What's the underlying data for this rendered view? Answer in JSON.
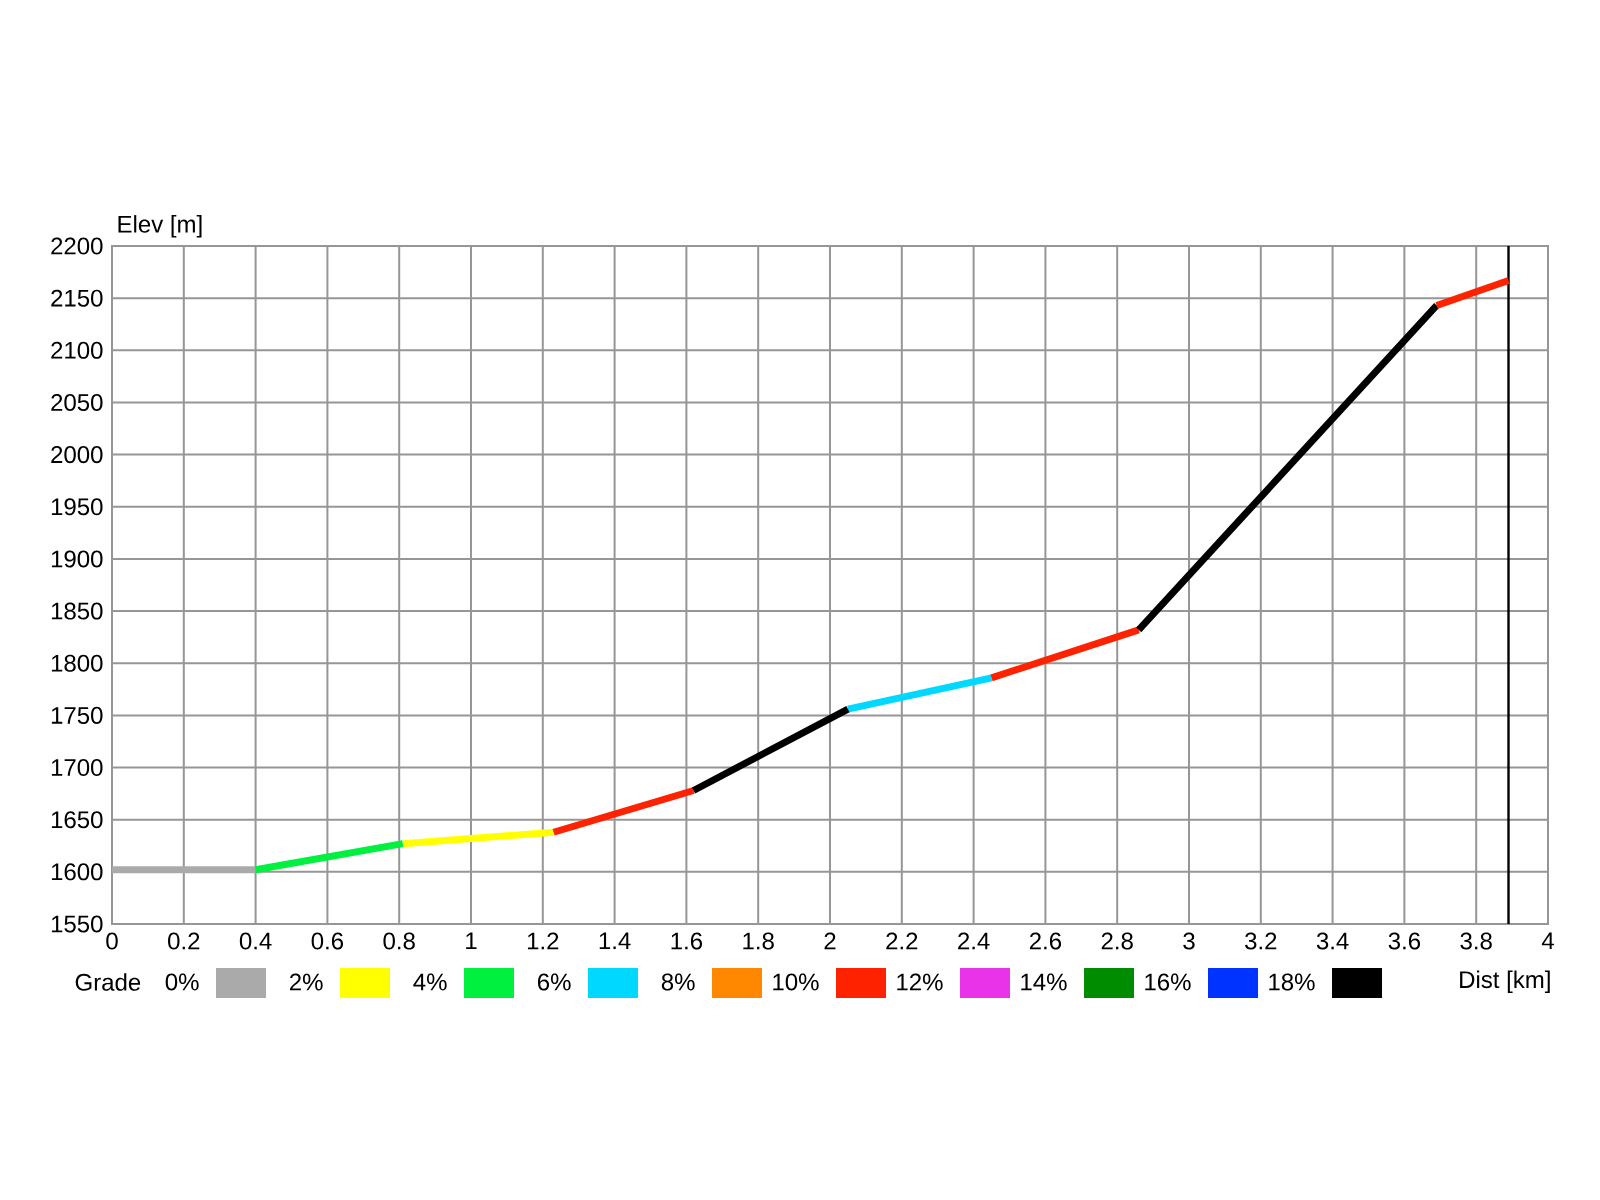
{
  "chart_data": {
    "type": "line",
    "xlabel": "Dist [km]",
    "ylabel": "Elev [m]",
    "legend_title": "Grade",
    "legend": "bottom",
    "grid": true,
    "x": [
      0,
      0.4,
      0.81,
      1.23,
      1.62,
      2.05,
      2.45,
      2.86,
      3.69,
      3.89
    ],
    "series": [
      {
        "name": "0%",
        "color": "#aaaaaa",
        "values": [
          1602,
          1602,
          null,
          null,
          null,
          null,
          null,
          null,
          null,
          null
        ]
      },
      {
        "name": "2%",
        "color": "#ffff00",
        "values": [
          null,
          null,
          1627,
          1638,
          null,
          null,
          null,
          null,
          null,
          null
        ]
      },
      {
        "name": "4%",
        "color": "#00f040",
        "values": [
          null,
          1602,
          1627,
          null,
          null,
          null,
          null,
          null,
          null,
          null
        ]
      },
      {
        "name": "6%",
        "color": "#00d8ff",
        "values": [
          null,
          null,
          null,
          null,
          null,
          1756,
          1786,
          null,
          null,
          null
        ]
      },
      {
        "name": "8%",
        "color": "#ff8800",
        "values": [
          null,
          null,
          null,
          null,
          null,
          null,
          null,
          null,
          null,
          null
        ]
      },
      {
        "name": "10%",
        "color": "#ff2200",
        "values": [
          null,
          null,
          null,
          1638,
          1678,
          null,
          1786,
          1832,
          null,
          null
        ]
      },
      {
        "name": "12%",
        "color": "#e833e8",
        "values": [
          null,
          null,
          null,
          null,
          null,
          null,
          null,
          null,
          null,
          null
        ]
      },
      {
        "name": "14%",
        "color": "#008c00",
        "values": [
          null,
          null,
          null,
          null,
          null,
          null,
          null,
          null,
          null,
          null
        ]
      },
      {
        "name": "16%",
        "color": "#0033ff",
        "values": [
          null,
          null,
          null,
          null,
          null,
          null,
          null,
          null,
          null,
          null
        ]
      },
      {
        "name": "18%",
        "color": "#000000",
        "values": [
          null,
          null,
          null,
          null,
          1678,
          1756,
          null,
          1832,
          2143,
          null
        ]
      },
      {
        "color": "#ff2200",
        "values": [
          null,
          null,
          null,
          null,
          null,
          null,
          null,
          null,
          2143,
          2167
        ]
      }
    ],
    "ref_lines": [
      {
        "axis": "x",
        "value": 3.89,
        "color": "#000000"
      }
    ],
    "xlim": [
      0,
      4
    ],
    "xticks": [
      0,
      0.2,
      0.4,
      0.6,
      0.8,
      1,
      1.2,
      1.4,
      1.6,
      1.8,
      2,
      2.2,
      2.4,
      2.6,
      2.8,
      3,
      3.2,
      3.4,
      3.6,
      3.8,
      4
    ],
    "ylim": [
      1550,
      2200
    ],
    "yticks": [
      1550,
      1600,
      1650,
      1700,
      1750,
      1800,
      1850,
      1900,
      1950,
      2000,
      2050,
      2100,
      2150,
      2200
    ]
  }
}
